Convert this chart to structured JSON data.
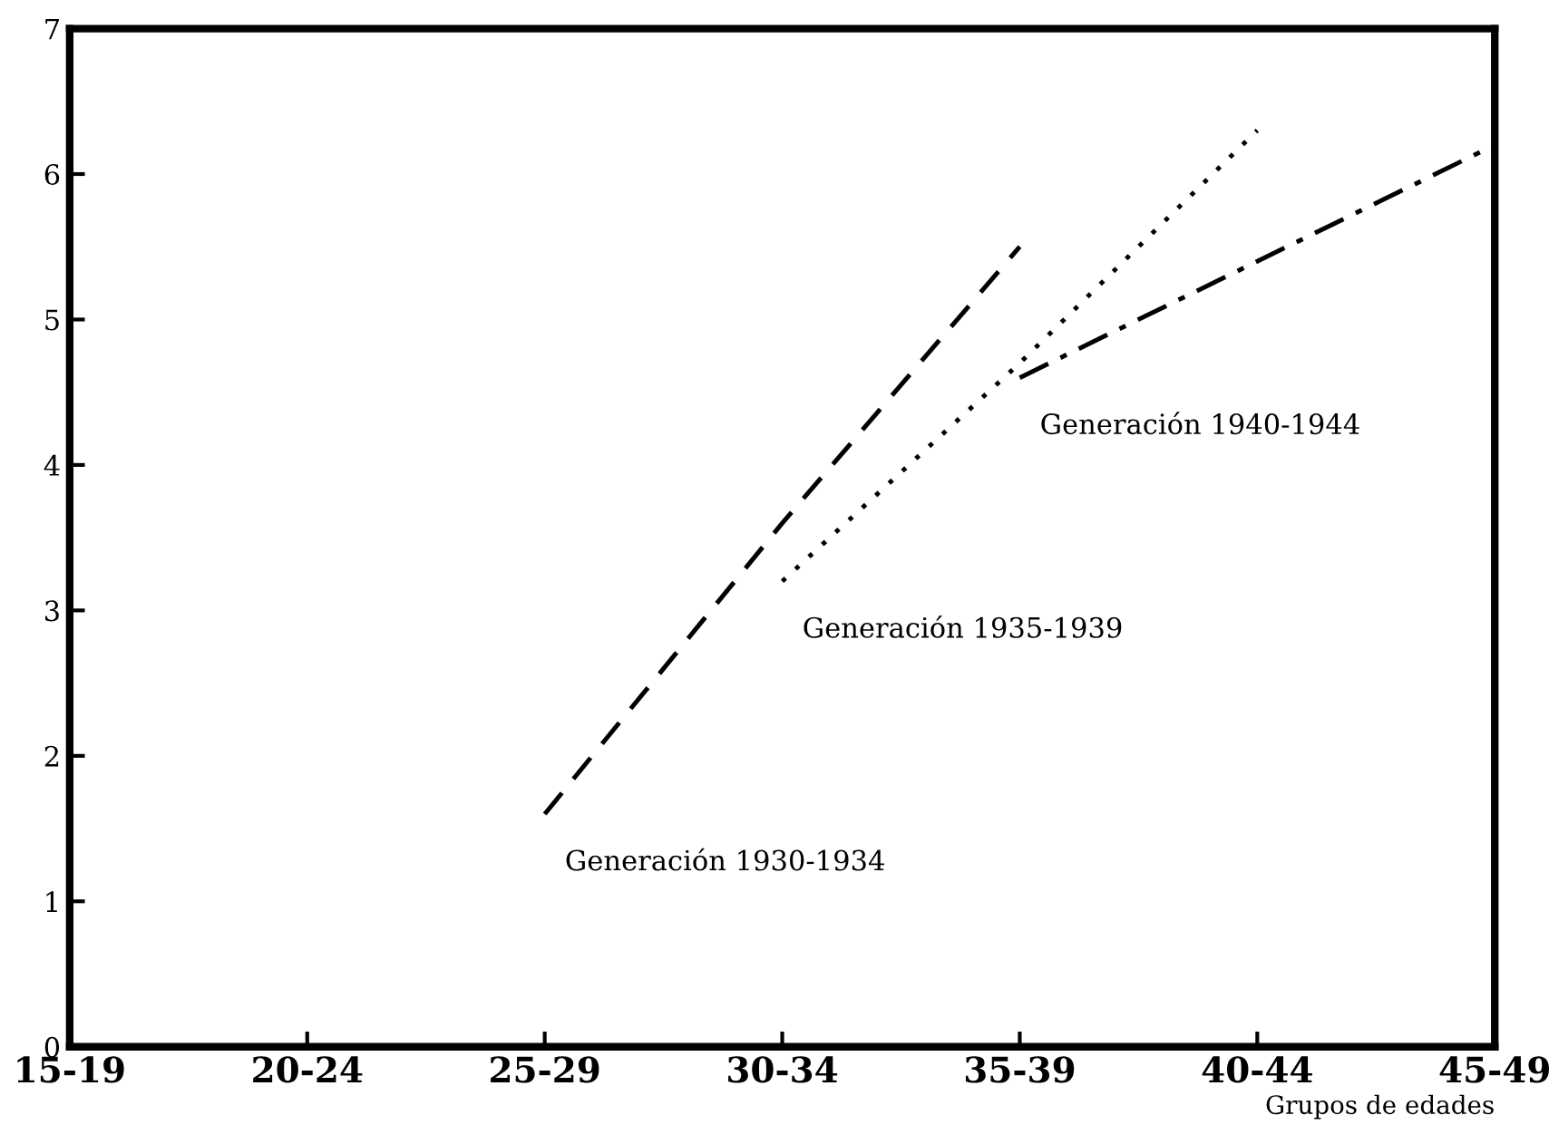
{
  "chart_data": {
    "type": "line",
    "xlabel": "Grupos de edades",
    "categories": [
      "15-19",
      "20-24",
      "25-29",
      "30-34",
      "35-39",
      "40-44",
      "45-49"
    ],
    "series": [
      {
        "name": "Generación 1930-1934",
        "color": "#000000",
        "line_style": "dashed",
        "values": [
          null,
          null,
          1.6,
          3.6,
          5.5,
          null,
          null
        ]
      },
      {
        "name": "Generación 1935-1939",
        "color": "#000000",
        "line_style": "dotted",
        "values": [
          null,
          null,
          null,
          3.2,
          4.7,
          6.3,
          null
        ]
      },
      {
        "name": "Generación 1940-1944",
        "color": "#000000",
        "line_style": "dashdot",
        "values": [
          null,
          null,
          null,
          null,
          4.6,
          5.4,
          6.2
        ]
      }
    ],
    "ylim": [
      0,
      7
    ],
    "yticks": [
      0,
      1,
      2,
      3,
      4,
      5,
      6,
      7
    ],
    "grid": false,
    "legend": false,
    "marker": "none"
  }
}
